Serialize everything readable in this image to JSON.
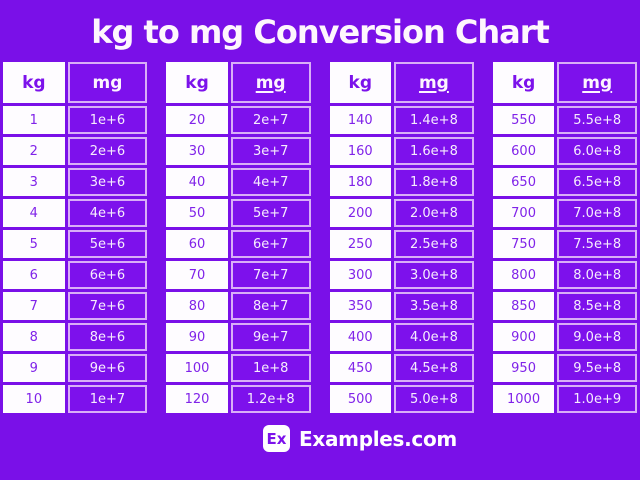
{
  "title": "kg to mg Conversion Chart",
  "colors": {
    "background": "#7a10e8",
    "cell_purple": "#7d11ec",
    "cell_border_light": "#d9aef7",
    "cell_white": "#fefcff",
    "text_purple": "#7c12eb",
    "text_white": "#fdf4fe"
  },
  "footer": {
    "logo_text": "Ex",
    "site_text": "Examples.com"
  },
  "chart_data": {
    "type": "table",
    "title": "kg to mg Conversion Chart",
    "columns": [
      "kg",
      "mg"
    ],
    "tables": [
      {
        "kg_header": "kg",
        "mg_header": "mg",
        "mg_header_underlined": false,
        "rows": [
          [
            "1",
            "1e+6"
          ],
          [
            "2",
            "2e+6"
          ],
          [
            "3",
            "3e+6"
          ],
          [
            "4",
            "4e+6"
          ],
          [
            "5",
            "5e+6"
          ],
          [
            "6",
            "6e+6"
          ],
          [
            "7",
            "7e+6"
          ],
          [
            "8",
            "8e+6"
          ],
          [
            "9",
            "9e+6"
          ],
          [
            "10",
            "1e+7"
          ]
        ]
      },
      {
        "kg_header": "kg",
        "mg_header": "mg",
        "mg_header_underlined": true,
        "rows": [
          [
            "20",
            "2e+7"
          ],
          [
            "30",
            "3e+7"
          ],
          [
            "40",
            "4e+7"
          ],
          [
            "50",
            "5e+7"
          ],
          [
            "60",
            "6e+7"
          ],
          [
            "70",
            "7e+7"
          ],
          [
            "80",
            "8e+7"
          ],
          [
            "90",
            "9e+7"
          ],
          [
            "100",
            "1e+8"
          ],
          [
            "120",
            "1.2e+8"
          ]
        ]
      },
      {
        "kg_header": "kg",
        "mg_header": "mg",
        "mg_header_underlined": true,
        "rows": [
          [
            "140",
            "1.4e+8"
          ],
          [
            "160",
            "1.6e+8"
          ],
          [
            "180",
            "1.8e+8"
          ],
          [
            "200",
            "2.0e+8"
          ],
          [
            "250",
            "2.5e+8"
          ],
          [
            "300",
            "3.0e+8"
          ],
          [
            "350",
            "3.5e+8"
          ],
          [
            "400",
            "4.0e+8"
          ],
          [
            "450",
            "4.5e+8"
          ],
          [
            "500",
            "5.0e+8"
          ]
        ]
      },
      {
        "kg_header": "kg",
        "mg_header": "mg",
        "mg_header_underlined": true,
        "rows": [
          [
            "550",
            "5.5e+8"
          ],
          [
            "600",
            "6.0e+8"
          ],
          [
            "650",
            "6.5e+8"
          ],
          [
            "700",
            "7.0e+8"
          ],
          [
            "750",
            "7.5e+8"
          ],
          [
            "800",
            "8.0e+8"
          ],
          [
            "850",
            "8.5e+8"
          ],
          [
            "900",
            "9.0e+8"
          ],
          [
            "950",
            "9.5e+8"
          ],
          [
            "1000",
            "1.0e+9"
          ]
        ]
      }
    ]
  }
}
